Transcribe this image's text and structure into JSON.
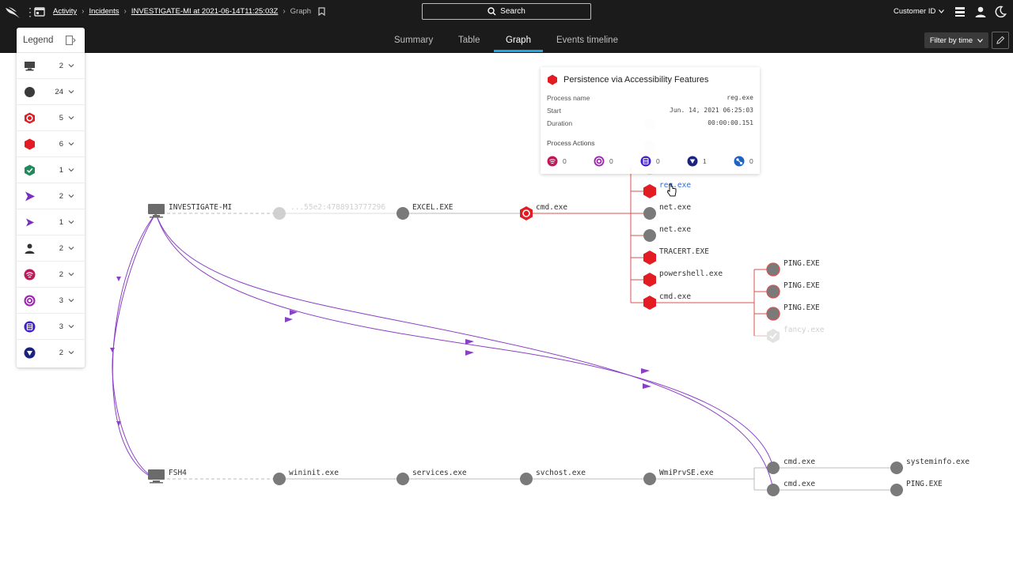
{
  "header": {
    "breadcrumbs": [
      "Activity",
      "Incidents",
      "INVESTIGATE-MI at 2021-06-14T11:25:03Z"
    ],
    "current_page": "Graph",
    "search_label": "Search",
    "customer_label": "Customer ID"
  },
  "tabs": [
    {
      "label": "Summary",
      "active": false
    },
    {
      "label": "Table",
      "active": false
    },
    {
      "label": "Graph",
      "active": true
    },
    {
      "label": "Events timeline",
      "active": false
    }
  ],
  "filter_label": "Filter by time",
  "legend": {
    "title": "Legend",
    "items": [
      {
        "icon": "host-icon",
        "count": "2"
      },
      {
        "icon": "process-dot-icon",
        "count": "24"
      },
      {
        "icon": "red-hexagon-outline-icon",
        "count": "5"
      },
      {
        "icon": "red-hexagon-icon",
        "count": "6"
      },
      {
        "icon": "green-shield-check-icon",
        "count": "1"
      },
      {
        "icon": "purple-arrow-icon",
        "count": "2"
      },
      {
        "icon": "purple-arrow-small-icon",
        "count": "1"
      },
      {
        "icon": "user-icon",
        "count": "2"
      },
      {
        "icon": "magenta-signal-icon",
        "count": "2"
      },
      {
        "icon": "violet-target-icon",
        "count": "3"
      },
      {
        "icon": "indigo-list-icon",
        "count": "3"
      },
      {
        "icon": "navy-triangle-icon",
        "count": "2"
      }
    ]
  },
  "tooltip": {
    "title": "Persistence via Accessibility Features",
    "rows": [
      {
        "key": "Process name",
        "value": "reg.exe"
      },
      {
        "key": "Start",
        "value": "Jun. 14, 2021 06:25:03"
      },
      {
        "key": "Duration",
        "value": "00:00:00.151"
      }
    ],
    "actions_label": "Process Actions",
    "actions": [
      {
        "icon": "magenta-signal-icon",
        "count": "0"
      },
      {
        "icon": "violet-target-icon",
        "count": "0"
      },
      {
        "icon": "indigo-list-icon",
        "count": "0"
      },
      {
        "icon": "navy-triangle-icon",
        "count": "1"
      },
      {
        "icon": "blue-network-icon",
        "count": "0"
      }
    ]
  },
  "graph": {
    "hosts": [
      "INVESTIGATE-MI",
      "FSH4"
    ],
    "row1": [
      "...55e2:4788913777296",
      "EXCEL.EXE",
      "cmd.exe"
    ],
    "branch": [
      "reg.exe",
      "net.exe",
      "net.exe",
      "TRACERT.EXE",
      "powershell.exe",
      "cmd.exe"
    ],
    "ping": [
      "PING.EXE",
      "PING.EXE",
      "PING.EXE",
      "fancy.exe"
    ],
    "row2": [
      "wininit.exe",
      "services.exe",
      "svchost.exe",
      "WmiPrvSE.exe"
    ],
    "right": [
      "cmd.exe",
      "cmd.exe"
    ],
    "leaves": [
      "systeminfo.exe",
      "PING.EXE"
    ]
  },
  "colors": {
    "accent": "#1fa7e6",
    "alert_red": "#e31b23",
    "edge_red": "#d9534f",
    "edge_purple": "#8a3fc7",
    "node_gray": "#7a7a7a"
  }
}
